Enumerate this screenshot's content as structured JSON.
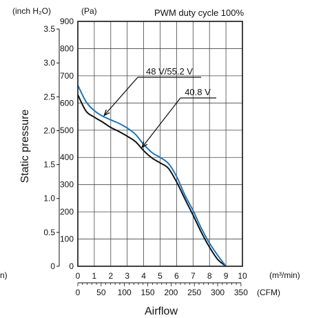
{
  "chart_data": {
    "type": "line",
    "title": "PWM duty cycle 100%",
    "xlabel": "Airflow",
    "ylabel": "Static pressure",
    "x_unit_primary": "(m³/min)",
    "x_unit_secondary": "(CFM)",
    "y_unit_primary": "(Pa)",
    "y_unit_secondary": "(inch H₂O)",
    "xlim": [
      0,
      10
    ],
    "ylim": [
      0,
      900
    ],
    "grid": true,
    "x_ticks": [
      "0",
      "1",
      "2",
      "3",
      "4",
      "5",
      "6",
      "7",
      "8",
      "9",
      "10"
    ],
    "cfm_ticks": [
      {
        "value": 0,
        "label": "0"
      },
      {
        "value": 50,
        "label": "50"
      },
      {
        "value": 100,
        "label": "100"
      },
      {
        "value": 150,
        "label": "150"
      },
      {
        "value": 200,
        "label": "200"
      },
      {
        "value": 250,
        "label": "250"
      },
      {
        "value": 300,
        "label": "300"
      },
      {
        "value": 350,
        "label": "350"
      }
    ],
    "y_ticks": [
      "0",
      "100",
      "200",
      "300",
      "400",
      "500",
      "600",
      "700",
      "800",
      "900"
    ],
    "inch_ticks": [
      "0",
      "0.5",
      "1.0",
      "1.5",
      "2.0",
      "2.5",
      "3.0",
      "3.5"
    ],
    "series": [
      {
        "name": "48 V/55.2 V",
        "color": "#1b75bb",
        "x": [
          0,
          0.5,
          1,
          1.5,
          2,
          2.5,
          3,
          3.5,
          4,
          4.5,
          5,
          5.5,
          6,
          6.5,
          7,
          7.5,
          8,
          8.5,
          9
        ],
        "y": [
          665,
          605,
          572,
          552,
          538,
          525,
          508,
          485,
          448,
          418,
          400,
          378,
          330,
          262,
          205,
          140,
          85,
          40,
          0
        ]
      },
      {
        "name": "40.8 V",
        "color": "#111111",
        "x": [
          0,
          0.5,
          1,
          1.5,
          2,
          2.5,
          3,
          3.5,
          4,
          4.5,
          5,
          5.5,
          6,
          6.5,
          7,
          7.5,
          8,
          8.5,
          9
        ],
        "y": [
          630,
          570,
          548,
          530,
          510,
          495,
          478,
          458,
          425,
          398,
          380,
          360,
          310,
          248,
          188,
          125,
          70,
          25,
          0
        ]
      }
    ],
    "annotations": [
      {
        "text": "48 V/55.2 V",
        "points_to_series": "48 V/55.2 V",
        "at_x": 1.6
      },
      {
        "text": "40.8 V",
        "points_to_series": "40.8 V",
        "at_x": 3.9
      }
    ]
  },
  "side_labels": {
    "left_clipped": "n)"
  }
}
